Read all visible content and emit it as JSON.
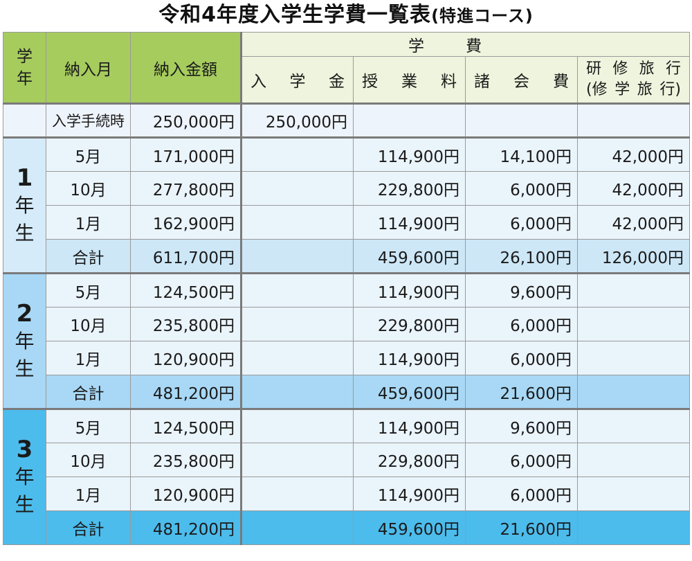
{
  "title": {
    "main": "令和4年度入学生学費一覧表",
    "sub": "(特進コース)"
  },
  "headers": {
    "year": [
      "学",
      "年"
    ],
    "month": "納入月",
    "amount": "納入金額",
    "gakuhi": "学費",
    "nyugakukin": [
      "入",
      "学",
      "金"
    ],
    "jugyoryo": [
      "授",
      "業",
      "料"
    ],
    "shokaihi": [
      "諸",
      "会",
      "費"
    ],
    "ryoko_line1": [
      "研",
      "修",
      "旅",
      "行"
    ],
    "ryoko_line2": [
      "(修",
      "学",
      "旅",
      "行)"
    ]
  },
  "entry_row": {
    "month": "入学手続時",
    "amount": "250,000円",
    "nyugakukin": "250,000円",
    "jugyoryo": "",
    "shokaihi": "",
    "ryoko": ""
  },
  "years": [
    {
      "num": "1",
      "label": [
        "年",
        "生"
      ],
      "rows": [
        {
          "month": "5月",
          "amount": "171,000円",
          "nyugakukin": "",
          "jugyoryo": "114,900円",
          "shokaihi": "14,100円",
          "ryoko": "42,000円"
        },
        {
          "month": "10月",
          "amount": "277,800円",
          "nyugakukin": "",
          "jugyoryo": "229,800円",
          "shokaihi": "6,000円",
          "ryoko": "42,000円"
        },
        {
          "month": "1月",
          "amount": "162,900円",
          "nyugakukin": "",
          "jugyoryo": "114,900円",
          "shokaihi": "6,000円",
          "ryoko": "42,000円"
        }
      ],
      "total": {
        "month": "合計",
        "amount": "611,700円",
        "nyugakukin": "",
        "jugyoryo": "459,600円",
        "shokaihi": "26,100円",
        "ryoko": "126,000円"
      }
    },
    {
      "num": "2",
      "label": [
        "年",
        "生"
      ],
      "rows": [
        {
          "month": "5月",
          "amount": "124,500円",
          "nyugakukin": "",
          "jugyoryo": "114,900円",
          "shokaihi": "9,600円",
          "ryoko": ""
        },
        {
          "month": "10月",
          "amount": "235,800円",
          "nyugakukin": "",
          "jugyoryo": "229,800円",
          "shokaihi": "6,000円",
          "ryoko": ""
        },
        {
          "month": "1月",
          "amount": "120,900円",
          "nyugakukin": "",
          "jugyoryo": "114,900円",
          "shokaihi": "6,000円",
          "ryoko": ""
        }
      ],
      "total": {
        "month": "合計",
        "amount": "481,200円",
        "nyugakukin": "",
        "jugyoryo": "459,600円",
        "shokaihi": "21,600円",
        "ryoko": ""
      }
    },
    {
      "num": "3",
      "label": [
        "年",
        "生"
      ],
      "rows": [
        {
          "month": "5月",
          "amount": "124,500円",
          "nyugakukin": "",
          "jugyoryo": "114,900円",
          "shokaihi": "9,600円",
          "ryoko": ""
        },
        {
          "month": "10月",
          "amount": "235,800円",
          "nyugakukin": "",
          "jugyoryo": "229,800円",
          "shokaihi": "6,000円",
          "ryoko": ""
        },
        {
          "month": "1月",
          "amount": "120,900円",
          "nyugakukin": "",
          "jugyoryo": "114,900円",
          "shokaihi": "6,000円",
          "ryoko": ""
        }
      ],
      "total": {
        "month": "合計",
        "amount": "481,200円",
        "nyugakukin": "",
        "jugyoryo": "459,600円",
        "shokaihi": "21,600円",
        "ryoko": ""
      }
    }
  ]
}
